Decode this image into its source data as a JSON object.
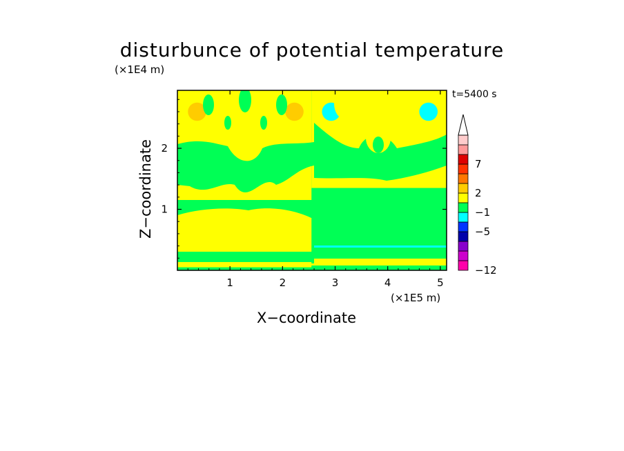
{
  "chart_data": {
    "type": "heatmap",
    "title": "disturbunce of potential temperature",
    "xlabel": "X−coordinate",
    "ylabel": "Z−coordinate",
    "x_scale_label": "(×1E5 m)",
    "z_scale_label": "(×1E4 m)",
    "time_label": "t=5400 s",
    "xlim": [
      0,
      5.12
    ],
    "zlim": [
      0,
      2.95
    ],
    "x_ticks": [
      1,
      2,
      3,
      4,
      5
    ],
    "z_ticks": [
      1,
      2
    ],
    "colorbar": {
      "levels": [
        "−12",
        "−5",
        "−1",
        "2",
        "7"
      ],
      "bins": [
        {
          "color": "#ff00aa"
        },
        {
          "color": "#cc00cc"
        },
        {
          "color": "#8800cc"
        },
        {
          "color": "#0000aa"
        },
        {
          "color": "#0033ff"
        },
        {
          "color": "#00ffff"
        },
        {
          "color": "#00ff55"
        },
        {
          "color": "#ffff00"
        },
        {
          "color": "#ffcc00"
        },
        {
          "color": "#ff7700"
        },
        {
          "color": "#ff3300"
        },
        {
          "color": "#dd0000"
        },
        {
          "color": "#ff9999"
        },
        {
          "color": "#ffcccc"
        }
      ],
      "extend_top": true
    },
    "regions": [
      {
        "level": "green",
        "color": "#00ff55",
        "x": [
          0.0,
          5.12
        ],
        "z": [
          0.0,
          2.95
        ]
      },
      {
        "level": "yellow",
        "color": "#ffff00",
        "x": [
          0.0,
          2.55
        ],
        "z": [
          0.85,
          2.95
        ]
      },
      {
        "level": "yellow",
        "color": "#ffff00",
        "x": [
          2.55,
          5.12
        ],
        "z": [
          1.35,
          2.95
        ]
      },
      {
        "level": "yellow",
        "color": "#ffff00",
        "x": [
          0.0,
          2.55
        ],
        "z": [
          0.05,
          0.95
        ]
      },
      {
        "level": "orange",
        "color": "#ffcc00",
        "x": [
          0.2,
          0.55
        ],
        "z": [
          2.45,
          2.75
        ]
      },
      {
        "level": "orange",
        "color": "#ffcc00",
        "x": [
          2.05,
          2.4
        ],
        "z": [
          2.45,
          2.75
        ]
      },
      {
        "level": "cyan",
        "color": "#00ffff",
        "x": [
          2.75,
          3.1
        ],
        "z": [
          2.45,
          2.75
        ]
      },
      {
        "level": "cyan",
        "color": "#00ffff",
        "x": [
          4.6,
          4.95
        ],
        "z": [
          2.45,
          2.75
        ]
      }
    ]
  }
}
